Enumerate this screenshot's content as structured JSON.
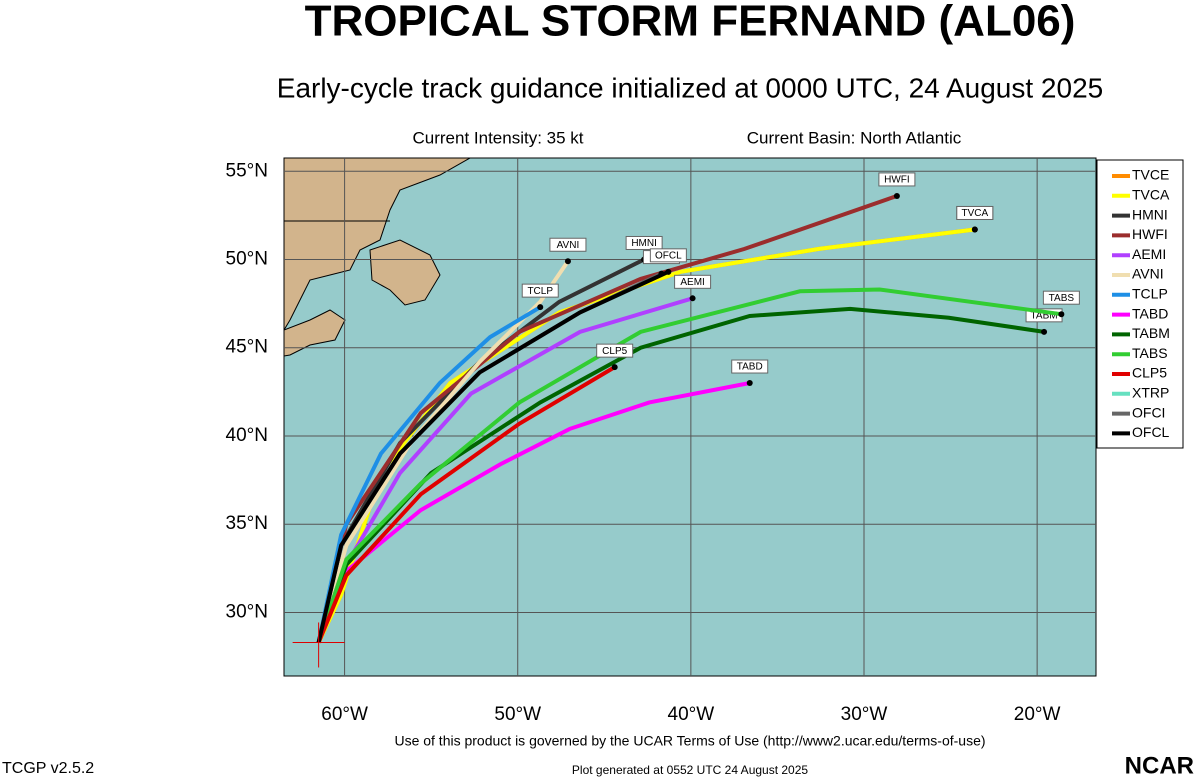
{
  "header": {
    "title": "TROPICAL STORM FERNAND (AL06)",
    "subtitle": "Early-cycle track guidance initialized at 0000 UTC, 24 August 2025",
    "intensity": "Current Intensity: 35 kt",
    "basin": "Current Basin: North Atlantic"
  },
  "map": {
    "lon_range": [
      -63.5,
      -16.6
    ],
    "lat_range": [
      26.4,
      55.75
    ],
    "lon_ticks": [
      {
        "value": -60,
        "label": "60°W"
      },
      {
        "value": -50,
        "label": "50°W"
      },
      {
        "value": -40,
        "label": "40°W"
      },
      {
        "value": -30,
        "label": "30°W"
      },
      {
        "value": -20,
        "label": "20°W"
      }
    ],
    "lat_ticks": [
      {
        "value": 30,
        "label": "30°N"
      },
      {
        "value": 35,
        "label": "35°N"
      },
      {
        "value": 40,
        "label": "40°N"
      },
      {
        "value": 45,
        "label": "45°N"
      },
      {
        "value": 50,
        "label": "50°N"
      },
      {
        "value": 55,
        "label": "55°N"
      }
    ],
    "storm_position": {
      "lon": -61.5,
      "lat": 28.3
    }
  },
  "tracks": [
    {
      "name": "TVCE",
      "color": "#ff8c00",
      "lon": [
        -61.5,
        -60.2,
        -57.9,
        -53.9,
        -47.6,
        -40.6,
        -32.6,
        -23.6
      ],
      "lat": [
        28.3,
        31.0,
        37.9,
        43.0,
        47.0,
        49.3,
        50.6,
        51.7
      ]
    },
    {
      "name": "TVCA",
      "color": "#ffff00",
      "lon": [
        -61.5,
        -60.2,
        -57.9,
        -53.9,
        -47.6,
        -40.6,
        -32.6,
        -23.6
      ],
      "lat": [
        28.3,
        31.0,
        37.9,
        43.0,
        47.0,
        49.3,
        50.6,
        51.7
      ]
    },
    {
      "name": "HMNI",
      "color": "#333333",
      "lon": [
        -61.5,
        -60.2,
        -56.8,
        -52.2,
        -47.6,
        -42.7
      ],
      "lat": [
        28.3,
        33.8,
        39.6,
        44.2,
        47.6,
        50.0
      ]
    },
    {
      "name": "HWFI",
      "color": "#9b2d2d",
      "lon": [
        -61.5,
        -59.9,
        -55.6,
        -49.9,
        -42.9,
        -36.9,
        -28.1
      ],
      "lat": [
        28.3,
        35.0,
        41.3,
        45.9,
        48.9,
        50.6,
        53.6
      ]
    },
    {
      "name": "AEMI",
      "color": "#b040ff",
      "lon": [
        -61.5,
        -59.9,
        -56.8,
        -52.7,
        -46.4,
        -39.9
      ],
      "lat": [
        28.3,
        32.7,
        37.9,
        42.4,
        45.9,
        47.8
      ]
    },
    {
      "name": "AVNI",
      "color": "#f0deb0",
      "lon": [
        -61.5,
        -59.9,
        -56.2,
        -52.2,
        -48.7,
        -47.1
      ],
      "lat": [
        28.3,
        33.8,
        39.6,
        44.2,
        47.6,
        49.9
      ]
    },
    {
      "name": "TCLP",
      "color": "#1e8fe6",
      "lon": [
        -61.5,
        -60.2,
        -57.9,
        -54.5,
        -51.6,
        -48.7
      ],
      "lat": [
        28.3,
        34.4,
        39.0,
        43.0,
        45.6,
        47.3
      ]
    },
    {
      "name": "TABD",
      "color": "#ff00ff",
      "lon": [
        -61.5,
        -60.2,
        -55.6,
        -51.0,
        -47.0,
        -42.4,
        -36.6
      ],
      "lat": [
        28.3,
        32.1,
        35.8,
        38.4,
        40.4,
        41.9,
        43.0
      ]
    },
    {
      "name": "TABM",
      "color": "#006400",
      "lon": [
        -61.5,
        -59.9,
        -55.0,
        -48.7,
        -42.9,
        -36.6,
        -30.8,
        -25.1,
        -19.6
      ],
      "lat": [
        28.3,
        32.7,
        37.9,
        41.9,
        45.0,
        46.8,
        47.2,
        46.7,
        45.9
      ]
    },
    {
      "name": "TABS",
      "color": "#32cd32",
      "lon": [
        -61.5,
        -59.9,
        -55.6,
        -49.9,
        -42.9,
        -33.7,
        -29.1,
        -18.6
      ],
      "lat": [
        28.3,
        33.0,
        37.3,
        41.9,
        45.9,
        48.2,
        48.3,
        46.9
      ]
    },
    {
      "name": "CLP5",
      "color": "#e00000",
      "lon": [
        -61.5,
        -59.9,
        -55.6,
        -49.9,
        -44.4
      ],
      "lat": [
        28.3,
        32.1,
        36.7,
        40.7,
        43.9
      ]
    },
    {
      "name": "XTRP",
      "color": "#66e0c0",
      "lon": [],
      "lat": []
    },
    {
      "name": "OFCI",
      "color": "#666666",
      "lon": [
        -61.5,
        -60.2,
        -56.8,
        -52.2,
        -46.4,
        -41.7
      ],
      "lat": [
        28.3,
        33.8,
        39.0,
        43.6,
        47.0,
        49.2
      ]
    },
    {
      "name": "OFCL",
      "color": "#000000",
      "lon": [
        -61.5,
        -60.2,
        -56.8,
        -52.2,
        -46.4,
        -41.3
      ],
      "lat": [
        28.3,
        33.8,
        39.0,
        43.6,
        47.0,
        49.3
      ]
    }
  ],
  "footer": {
    "terms": "Use of this product is governed by the UCAR Terms of Use (http://www2.ucar.edu/terms-of-use)",
    "version": "TCGP v2.5.2",
    "generated": "Plot generated at 0552 UTC   24 August 2025",
    "logo": "NCAR"
  }
}
